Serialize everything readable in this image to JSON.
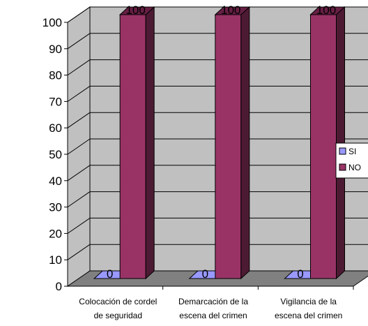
{
  "chart_data": {
    "type": "bar",
    "categories": [
      "Colocación de cordel de seguridad",
      "Demarcación de la escena del crimen",
      "Vigilancia de la escena del crimen"
    ],
    "category_lines": [
      [
        "Colocación de cordel",
        "de seguridad"
      ],
      [
        "Demarcación de la",
        "escena del crimen"
      ],
      [
        "Vigilancia de la",
        "escena del crimen"
      ]
    ],
    "series": [
      {
        "name": "SI",
        "values": [
          0,
          0,
          0
        ],
        "color": "#9999ff"
      },
      {
        "name": "NO",
        "values": [
          100,
          100,
          100
        ],
        "color": "#993366"
      }
    ],
    "data_labels": [
      [
        "0",
        "0",
        "0"
      ],
      [
        "100",
        "100",
        "100"
      ]
    ],
    "yticks": [
      "0",
      "10",
      "20",
      "30",
      "40",
      "50",
      "60",
      "70",
      "80",
      "90",
      "100"
    ],
    "ylim": [
      0,
      100
    ],
    "grid": true,
    "legend_position": "right",
    "three_d": true,
    "colors": {
      "wall": "#c0c0c0",
      "floor": "#808080",
      "grid": "#000000"
    }
  }
}
